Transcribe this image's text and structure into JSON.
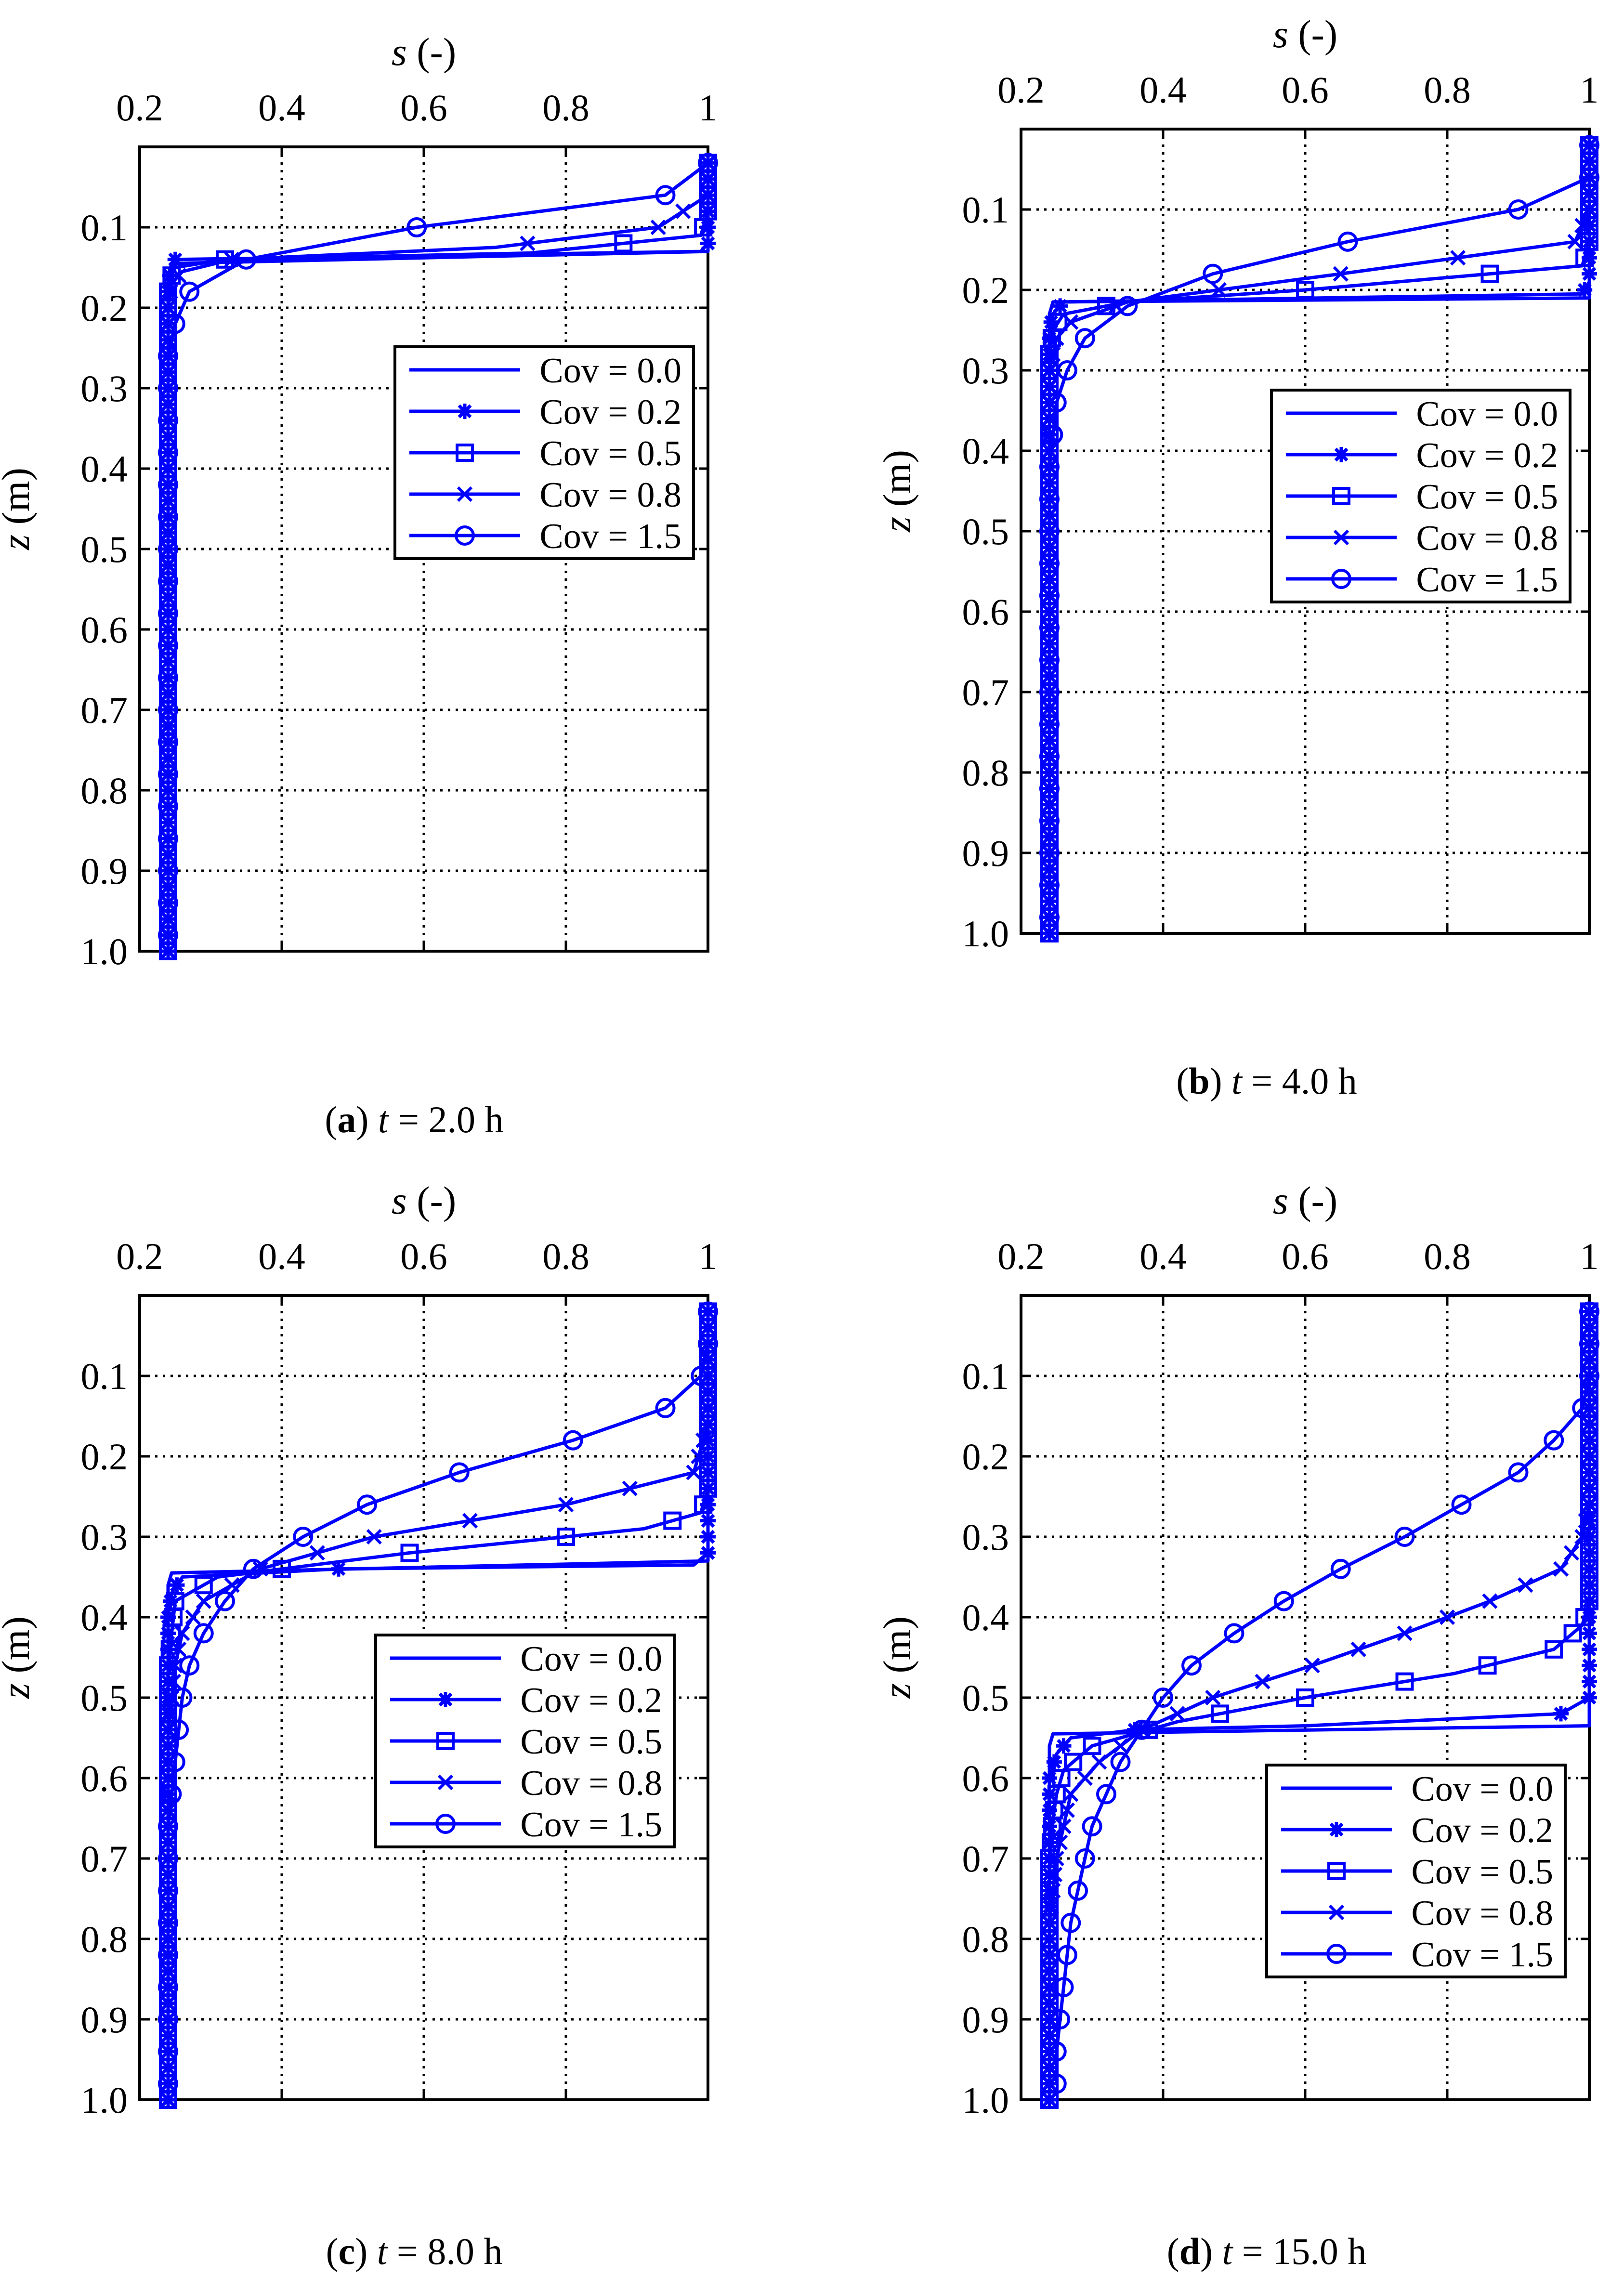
{
  "figure": {
    "series_color": "#0000ff",
    "legend_labels": [
      "Cov = 0.0",
      "Cov = 0.2",
      "Cov = 0.5",
      "Cov = 0.8",
      "Cov = 1.5"
    ],
    "marker_icons": [
      "line-only",
      "asterisk-icon",
      "square-icon",
      "cross-icon",
      "circle-icon"
    ]
  },
  "chart_data": [
    {
      "type": "line",
      "panel_letter": "a",
      "caption_var": "t",
      "caption_rest": " = 2.0 h",
      "xlabel_var": "s",
      "xlabel_rest": " (-)",
      "ylabel_var": "z",
      "ylabel_rest": " (m)",
      "xlim": [
        0.2,
        1.0
      ],
      "ylim": [
        0.0,
        1.0
      ],
      "y_inverted": true,
      "x_ticks": [
        "0.2",
        "0.4",
        "0.6",
        "0.8",
        "1"
      ],
      "y_ticks": [
        "0.1",
        "0.2",
        "0.3",
        "0.4",
        "0.5",
        "0.6",
        "0.7",
        "0.8",
        "0.9",
        "1.0"
      ],
      "grid": true,
      "legend_position": "right-middle",
      "front_depth": 0.14,
      "series": [
        {
          "name": "Cov = 0.0",
          "marker": "none",
          "points": [
            [
              1.0,
              0.02
            ],
            [
              1.0,
              0.13
            ],
            [
              0.245,
              0.145
            ],
            [
              0.24,
              0.16
            ],
            [
              0.24,
              1.0
            ]
          ]
        },
        {
          "name": "Cov = 0.2",
          "marker": "asterisk",
          "points": [
            [
              1.0,
              0.02
            ],
            [
              1.0,
              0.12
            ],
            [
              0.99,
              0.13
            ],
            [
              0.25,
              0.14
            ],
            [
              0.245,
              0.15
            ],
            [
              0.24,
              0.17
            ],
            [
              0.24,
              1.0
            ]
          ]
        },
        {
          "name": "Cov = 0.5",
          "marker": "square",
          "points": [
            [
              1.0,
              0.02
            ],
            [
              1.0,
              0.08
            ],
            [
              0.99,
              0.11
            ],
            [
              0.75,
              0.132
            ],
            [
              0.32,
              0.14
            ],
            [
              0.25,
              0.15
            ],
            [
              0.245,
              0.16
            ],
            [
              0.24,
              0.18
            ],
            [
              0.24,
              1.0
            ]
          ]
        },
        {
          "name": "Cov = 0.8",
          "marker": "cross",
          "points": [
            [
              1.0,
              0.02
            ],
            [
              1.0,
              0.06
            ],
            [
              0.93,
              0.1
            ],
            [
              0.7,
              0.125
            ],
            [
              0.33,
              0.14
            ],
            [
              0.26,
              0.155
            ],
            [
              0.245,
              0.17
            ],
            [
              0.24,
              0.2
            ],
            [
              0.24,
              1.0
            ]
          ]
        },
        {
          "name": "Cov = 1.5",
          "marker": "circle",
          "points": [
            [
              1.0,
              0.02
            ],
            [
              0.94,
              0.06
            ],
            [
              0.59,
              0.1
            ],
            [
              0.35,
              0.14
            ],
            [
              0.27,
              0.18
            ],
            [
              0.25,
              0.22
            ],
            [
              0.24,
              0.26
            ],
            [
              0.24,
              1.0
            ]
          ]
        }
      ]
    },
    {
      "type": "line",
      "panel_letter": "b",
      "caption_var": "t",
      "caption_rest": " = 4.0 h",
      "xlabel_var": "s",
      "xlabel_rest": " (-)",
      "ylabel_var": "z",
      "ylabel_rest": " (m)",
      "xlim": [
        0.2,
        1.0
      ],
      "ylim": [
        0.0,
        1.0
      ],
      "y_inverted": true,
      "x_ticks": [
        "0.2",
        "0.4",
        "0.6",
        "0.8",
        "1"
      ],
      "y_ticks": [
        "0.1",
        "0.2",
        "0.3",
        "0.4",
        "0.5",
        "0.6",
        "0.7",
        "0.8",
        "0.9",
        "1.0"
      ],
      "grid": true,
      "legend_position": "right-middle",
      "front_depth": 0.215,
      "series": [
        {
          "name": "Cov = 0.0",
          "marker": "none",
          "points": [
            [
              1.0,
              0.02
            ],
            [
              1.0,
              0.21
            ],
            [
              0.245,
              0.215
            ],
            [
              0.24,
              0.23
            ],
            [
              0.24,
              1.0
            ]
          ]
        },
        {
          "name": "Cov = 0.2",
          "marker": "asterisk",
          "points": [
            [
              1.0,
              0.02
            ],
            [
              1.0,
              0.19
            ],
            [
              0.99,
              0.205
            ],
            [
              0.26,
              0.215
            ],
            [
              0.245,
              0.23
            ],
            [
              0.24,
              0.25
            ],
            [
              0.24,
              1.0
            ]
          ]
        },
        {
          "name": "Cov = 0.5",
          "marker": "square",
          "points": [
            [
              1.0,
              0.02
            ],
            [
              1.0,
              0.14
            ],
            [
              0.99,
              0.17
            ],
            [
              0.6,
              0.2
            ],
            [
              0.35,
              0.215
            ],
            [
              0.26,
              0.23
            ],
            [
              0.245,
              0.25
            ],
            [
              0.24,
              0.28
            ],
            [
              0.24,
              1.0
            ]
          ]
        },
        {
          "name": "Cov = 0.8",
          "marker": "cross",
          "points": [
            [
              1.0,
              0.02
            ],
            [
              1.0,
              0.1
            ],
            [
              0.98,
              0.14
            ],
            [
              0.65,
              0.18
            ],
            [
              0.35,
              0.215
            ],
            [
              0.27,
              0.24
            ],
            [
              0.25,
              0.26
            ],
            [
              0.24,
              0.3
            ],
            [
              0.24,
              1.0
            ]
          ]
        },
        {
          "name": "Cov = 1.5",
          "marker": "circle",
          "points": [
            [
              1.0,
              0.02
            ],
            [
              1.0,
              0.06
            ],
            [
              0.9,
              0.1
            ],
            [
              0.66,
              0.14
            ],
            [
              0.47,
              0.18
            ],
            [
              0.35,
              0.22
            ],
            [
              0.29,
              0.26
            ],
            [
              0.265,
              0.3
            ],
            [
              0.25,
              0.34
            ],
            [
              0.245,
              0.38
            ],
            [
              0.24,
              0.42
            ],
            [
              0.24,
              1.0
            ]
          ]
        }
      ]
    },
    {
      "type": "line",
      "panel_letter": "c",
      "caption_var": "t",
      "caption_rest": " = 8.0 h",
      "xlabel_var": "s",
      "xlabel_rest": " (-)",
      "ylabel_var": "z",
      "ylabel_rest": " (m)",
      "xlim": [
        0.2,
        1.0
      ],
      "ylim": [
        0.0,
        1.0
      ],
      "y_inverted": true,
      "x_ticks": [
        "0.2",
        "0.4",
        "0.6",
        "0.8",
        "1"
      ],
      "y_ticks": [
        "0.1",
        "0.2",
        "0.3",
        "0.4",
        "0.5",
        "0.6",
        "0.7",
        "0.8",
        "0.9",
        "1.0"
      ],
      "grid": true,
      "legend_position": "right-middle",
      "front_depth": 0.34,
      "series": [
        {
          "name": "Cov = 0.0",
          "marker": "none",
          "points": [
            [
              1.0,
              0.02
            ],
            [
              1.0,
              0.33
            ],
            [
              0.245,
              0.345
            ],
            [
              0.24,
              0.36
            ],
            [
              0.24,
              1.0
            ]
          ]
        },
        {
          "name": "Cov = 0.2",
          "marker": "asterisk",
          "points": [
            [
              1.0,
              0.02
            ],
            [
              1.0,
              0.32
            ],
            [
              0.98,
              0.335
            ],
            [
              0.48,
              0.34
            ],
            [
              0.26,
              0.35
            ],
            [
              0.245,
              0.37
            ],
            [
              0.24,
              0.4
            ],
            [
              0.24,
              1.0
            ]
          ]
        },
        {
          "name": "Cov = 0.5",
          "marker": "square",
          "points": [
            [
              1.0,
              0.02
            ],
            [
              1.0,
              0.24
            ],
            [
              0.99,
              0.27
            ],
            [
              0.91,
              0.29
            ],
            [
              0.58,
              0.32
            ],
            [
              0.31,
              0.35
            ],
            [
              0.25,
              0.38
            ],
            [
              0.245,
              0.42
            ],
            [
              0.24,
              0.46
            ],
            [
              0.24,
              1.0
            ]
          ]
        },
        {
          "name": "Cov = 0.8",
          "marker": "cross",
          "points": [
            [
              1.0,
              0.02
            ],
            [
              1.0,
              0.16
            ],
            [
              0.98,
              0.22
            ],
            [
              0.8,
              0.26
            ],
            [
              0.53,
              0.3
            ],
            [
              0.37,
              0.34
            ],
            [
              0.29,
              0.38
            ],
            [
              0.26,
              0.42
            ],
            [
              0.25,
              0.46
            ],
            [
              0.245,
              0.5
            ],
            [
              0.24,
              0.54
            ],
            [
              0.24,
              1.0
            ]
          ]
        },
        {
          "name": "Cov = 1.5",
          "marker": "circle",
          "points": [
            [
              1.0,
              0.02
            ],
            [
              1.0,
              0.06
            ],
            [
              0.99,
              0.1
            ],
            [
              0.94,
              0.14
            ],
            [
              0.81,
              0.18
            ],
            [
              0.65,
              0.22
            ],
            [
              0.52,
              0.26
            ],
            [
              0.43,
              0.3
            ],
            [
              0.36,
              0.34
            ],
            [
              0.32,
              0.38
            ],
            [
              0.29,
              0.42
            ],
            [
              0.27,
              0.46
            ],
            [
              0.26,
              0.5
            ],
            [
              0.255,
              0.54
            ],
            [
              0.25,
              0.58
            ],
            [
              0.245,
              0.62
            ],
            [
              0.24,
              0.66
            ],
            [
              0.24,
              1.0
            ]
          ]
        }
      ]
    },
    {
      "type": "line",
      "panel_letter": "d",
      "caption_var": "t",
      "caption_rest": " = 15.0 h",
      "xlabel_var": "s",
      "xlabel_rest": " (-)",
      "ylabel_var": "z",
      "ylabel_rest": " (m)",
      "xlim": [
        0.2,
        1.0
      ],
      "ylim": [
        0.0,
        1.0
      ],
      "y_inverted": true,
      "x_ticks": [
        "0.2",
        "0.4",
        "0.6",
        "0.8",
        "1"
      ],
      "y_ticks": [
        "0.1",
        "0.2",
        "0.3",
        "0.4",
        "0.5",
        "0.6",
        "0.7",
        "0.8",
        "0.9",
        "1.0"
      ],
      "grid": true,
      "legend_position": "right-lower",
      "front_depth": 0.54,
      "series": [
        {
          "name": "Cov = 0.0",
          "marker": "none",
          "points": [
            [
              1.0,
              0.02
            ],
            [
              1.0,
              0.535
            ],
            [
              0.245,
              0.545
            ],
            [
              0.24,
              0.56
            ],
            [
              0.24,
              1.0
            ]
          ]
        },
        {
          "name": "Cov = 0.2",
          "marker": "asterisk",
          "points": [
            [
              1.0,
              0.02
            ],
            [
              1.0,
              0.5
            ],
            [
              0.96,
              0.52
            ],
            [
              0.6,
              0.535
            ],
            [
              0.36,
              0.54
            ],
            [
              0.27,
              0.55
            ],
            [
              0.25,
              0.57
            ],
            [
              0.24,
              0.6
            ],
            [
              0.24,
              1.0
            ]
          ]
        },
        {
          "name": "Cov = 0.5",
          "marker": "square",
          "points": [
            [
              1.0,
              0.02
            ],
            [
              1.0,
              0.38
            ],
            [
              0.99,
              0.41
            ],
            [
              0.95,
              0.44
            ],
            [
              0.81,
              0.47
            ],
            [
              0.6,
              0.5
            ],
            [
              0.42,
              0.53
            ],
            [
              0.3,
              0.56
            ],
            [
              0.26,
              0.59
            ],
            [
              0.25,
              0.62
            ],
            [
              0.245,
              0.65
            ],
            [
              0.24,
              0.7
            ],
            [
              0.24,
              1.0
            ]
          ]
        },
        {
          "name": "Cov = 0.8",
          "marker": "cross",
          "points": [
            [
              1.0,
              0.02
            ],
            [
              1.0,
              0.26
            ],
            [
              0.99,
              0.3
            ],
            [
              0.96,
              0.34
            ],
            [
              0.86,
              0.38
            ],
            [
              0.74,
              0.42
            ],
            [
              0.61,
              0.46
            ],
            [
              0.47,
              0.5
            ],
            [
              0.37,
              0.54
            ],
            [
              0.31,
              0.58
            ],
            [
              0.27,
              0.62
            ],
            [
              0.26,
              0.66
            ],
            [
              0.25,
              0.7
            ],
            [
              0.245,
              0.74
            ],
            [
              0.24,
              0.78
            ],
            [
              0.24,
              1.0
            ]
          ]
        },
        {
          "name": "Cov = 1.5",
          "marker": "circle",
          "points": [
            [
              1.0,
              0.02
            ],
            [
              1.0,
              0.1
            ],
            [
              0.99,
              0.14
            ],
            [
              0.95,
              0.18
            ],
            [
              0.9,
              0.22
            ],
            [
              0.82,
              0.26
            ],
            [
              0.74,
              0.3
            ],
            [
              0.65,
              0.34
            ],
            [
              0.57,
              0.38
            ],
            [
              0.5,
              0.42
            ],
            [
              0.44,
              0.46
            ],
            [
              0.4,
              0.5
            ],
            [
              0.37,
              0.54
            ],
            [
              0.34,
              0.58
            ],
            [
              0.32,
              0.62
            ],
            [
              0.3,
              0.66
            ],
            [
              0.29,
              0.7
            ],
            [
              0.28,
              0.74
            ],
            [
              0.27,
              0.78
            ],
            [
              0.265,
              0.82
            ],
            [
              0.26,
              0.86
            ],
            [
              0.255,
              0.9
            ],
            [
              0.25,
              0.94
            ],
            [
              0.25,
              0.98
            ]
          ]
        }
      ]
    }
  ]
}
